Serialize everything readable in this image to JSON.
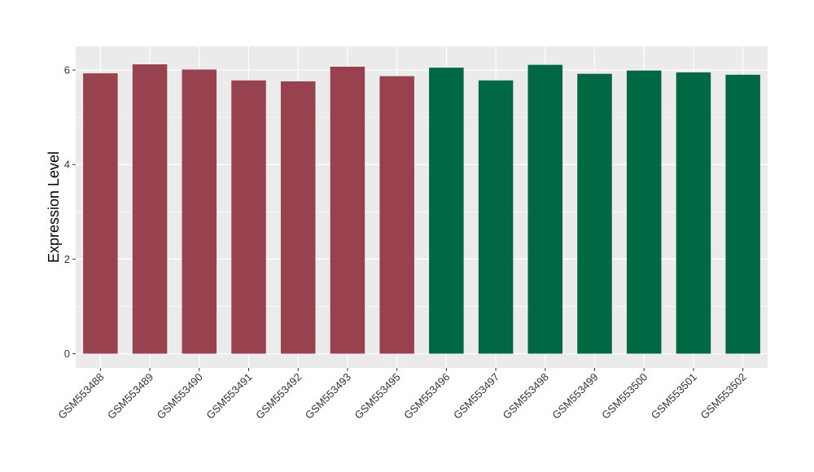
{
  "chart_data": {
    "type": "bar",
    "title": "",
    "xlabel": "",
    "ylabel": "Expression Level",
    "ylim": [
      -0.3,
      6.5
    ],
    "yticks": [
      0,
      2,
      4,
      6
    ],
    "grid": true,
    "legend": "none",
    "categories": [
      "GSM553488",
      "GSM553489",
      "GSM553490",
      "GSM553491",
      "GSM553492",
      "GSM553493",
      "GSM553495",
      "GSM553496",
      "GSM553497",
      "GSM553498",
      "GSM553499",
      "GSM553500",
      "GSM553501",
      "GSM553502"
    ],
    "values": [
      5.93,
      6.12,
      6.01,
      5.78,
      5.76,
      6.07,
      5.87,
      6.05,
      5.78,
      6.11,
      5.92,
      5.99,
      5.95,
      5.9
    ],
    "bar_colors": [
      "#99424f",
      "#99424f",
      "#99424f",
      "#99424f",
      "#99424f",
      "#99424f",
      "#99424f",
      "#006843",
      "#006843",
      "#006843",
      "#006843",
      "#006843",
      "#006843",
      "#006843"
    ],
    "panel_background": "#ebebeb",
    "grid_color": "#ffffff"
  }
}
